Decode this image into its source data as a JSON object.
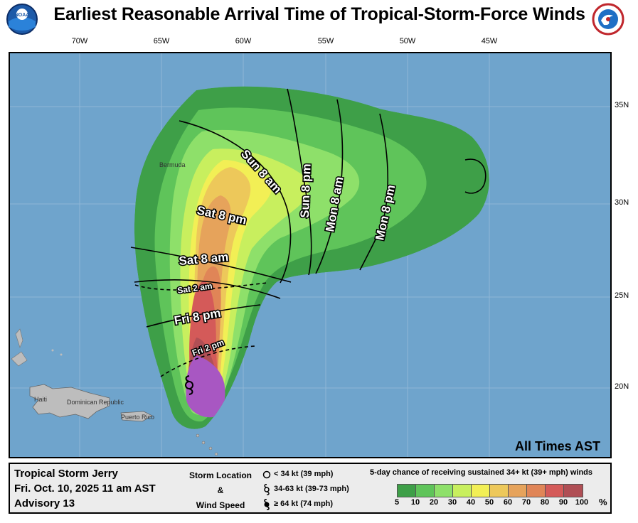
{
  "header": {
    "title": "Earliest Reasonable Arrival Time of Tropical-Storm-Force Winds",
    "left_logo": "noaa-logo",
    "right_logo": "national-weather-service-logo"
  },
  "map": {
    "lon_labels": [
      "70W",
      "65W",
      "60W",
      "55W",
      "50W",
      "45W"
    ],
    "lat_labels": [
      "35N",
      "30N",
      "25N",
      "20N"
    ],
    "place_labels": [
      "Bermuda",
      "Haiti",
      "Dominican Republic",
      "Puerto Rico"
    ],
    "time_labels": {
      "fri_2pm": "Fri 2 pm",
      "fri_8pm": "Fri 8 pm",
      "sat_2am": "Sat 2 am",
      "sat_8am": "Sat 8 am",
      "sat_8pm": "Sat 8 pm",
      "sun_8am": "Sun 8 am",
      "sun_8pm": "Sun 8 pm",
      "mon_8am": "Mon 8 am",
      "mon_8pm": "Mon 8 pm"
    },
    "all_times": "All Times AST",
    "colors": {
      "ocean": "#6fa4cc",
      "land": "#bdbdbd",
      "outer_green": "#3fa04a"
    }
  },
  "footer": {
    "storm_name": "Tropical Storm Jerry",
    "issued": "Fri. Oct. 10, 2025  11 am AST",
    "advisory": "Advisory 13",
    "storm_location_label": "Storm Location",
    "and_label": "&",
    "wind_speed_label": "Wind Speed",
    "key": [
      {
        "label": "< 34 kt (39 mph)",
        "icon": "circle-icon"
      },
      {
        "label": "34-63 kt (39-73 mph)",
        "icon": "tropical-storm-icon"
      },
      {
        "label": "≥ 64 kt (74 mph)",
        "icon": "hurricane-icon"
      }
    ],
    "legend_title": "5-day chance of receiving sustained 34+ kt (39+ mph) winds",
    "legend_values": [
      "5",
      "10",
      "20",
      "30",
      "40",
      "50",
      "60",
      "70",
      "80",
      "90",
      "100"
    ],
    "legend_percent": "%",
    "legend_colors": [
      "#3e9f48",
      "#5fc45a",
      "#8ee06a",
      "#c8ef5e",
      "#f2ef55",
      "#edc85a",
      "#e6a35b",
      "#e08557",
      "#d45a59",
      "#b04f55",
      "#a857c2"
    ]
  }
}
